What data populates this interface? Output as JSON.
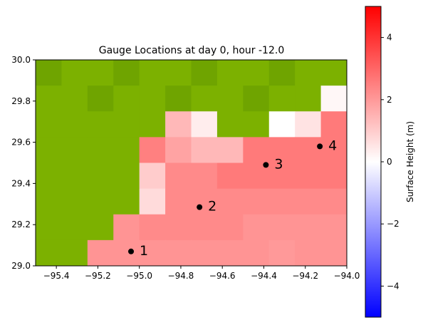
{
  "chart_data": {
    "type": "heatmap",
    "title": "Gauge Locations at day   0, hour -12.0",
    "xlim": [
      -95.5,
      -94.0
    ],
    "ylim": [
      29.0,
      30.0
    ],
    "grid": false,
    "cell_size": 0.125,
    "x_ticks": [
      -95.4,
      -95.2,
      -95.0,
      -94.8,
      -94.6,
      -94.4,
      -94.2,
      -94.0
    ],
    "x_tick_labels": [
      "−95.4",
      "−95.2",
      "−95.0",
      "−94.8",
      "−94.6",
      "−94.4",
      "−94.2",
      "−94.0"
    ],
    "y_ticks": [
      29.0,
      29.2,
      29.4,
      29.6,
      29.8,
      30.0
    ],
    "y_tick_labels": [
      "29.0",
      "29.2",
      "29.4",
      "29.6",
      "29.8",
      "30.0"
    ],
    "land_color": "#7cb100",
    "land_color_dark": "#6fa400",
    "surface_height_grid_north_to_south": [
      [
        null,
        null,
        null,
        null,
        null,
        null,
        null,
        null,
        null,
        null,
        null,
        null
      ],
      [
        null,
        null,
        null,
        null,
        null,
        null,
        null,
        null,
        null,
        null,
        null,
        0.15
      ],
      [
        null,
        null,
        null,
        null,
        null,
        1.4,
        0.35,
        null,
        null,
        0.0,
        0.55,
        2.6
      ],
      [
        null,
        null,
        null,
        null,
        2.5,
        1.8,
        1.4,
        1.4,
        2.6,
        2.6,
        2.6,
        2.6
      ],
      [
        null,
        null,
        null,
        null,
        1.0,
        2.3,
        2.3,
        2.6,
        2.6,
        2.6,
        2.6,
        2.6
      ],
      [
        null,
        null,
        null,
        null,
        0.7,
        2.3,
        2.3,
        2.3,
        2.3,
        2.3,
        2.3,
        2.3
      ],
      [
        null,
        null,
        null,
        2.1,
        2.3,
        2.3,
        2.3,
        2.3,
        2.1,
        2.1,
        2.1,
        2.1
      ],
      [
        null,
        null,
        2.1,
        2.1,
        2.1,
        2.1,
        2.1,
        2.1,
        2.1,
        2.0,
        2.1,
        2.1
      ]
    ],
    "gauges": [
      {
        "label": "1",
        "x": -95.04,
        "y": 29.07
      },
      {
        "label": "2",
        "x": -94.71,
        "y": 29.285
      },
      {
        "label": "3",
        "x": -94.39,
        "y": 29.49
      },
      {
        "label": "4",
        "x": -94.13,
        "y": 29.58
      }
    ],
    "colorbar": {
      "label": "Surface Height (m)",
      "vmin": -5,
      "vmax": 5,
      "colormap": "bwr",
      "ticks": [
        -4,
        -2,
        0,
        2,
        4
      ],
      "tick_labels": [
        "−4",
        "−2",
        "0",
        "2",
        "4"
      ]
    }
  }
}
